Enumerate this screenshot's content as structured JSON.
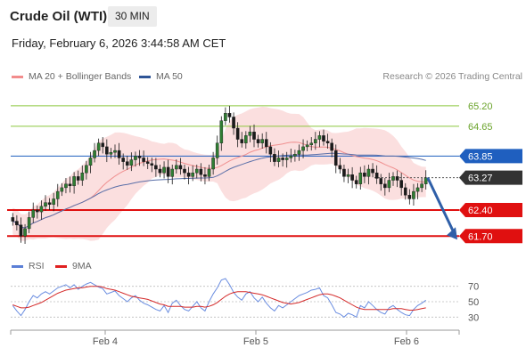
{
  "header": {
    "title": "Crude Oil (WTI)",
    "timeframe": "30 MIN",
    "datetime": "Friday, February 6, 2026 3:44:58 AM CET"
  },
  "legend": {
    "main": [
      {
        "label": "MA 20 + Bollinger Bands",
        "color": "#f28c8c"
      },
      {
        "label": "MA 50",
        "color": "#2f5597"
      }
    ],
    "indicator": [
      {
        "label": "RSI",
        "color": "#5b7fd6"
      },
      {
        "label": "9MA",
        "color": "#e02020"
      }
    ]
  },
  "credit": "Research © 2026 Trading Central",
  "colors": {
    "resistance": "#8cc63f",
    "pivot": "#1f5fbf",
    "support": "#e01010",
    "current": "#333333",
    "arrow": "#2f5fa8",
    "candle": "#2e7d32",
    "band": "#fad4d4",
    "ma20": "#f09090",
    "ma50": "#5a6fa8"
  },
  "chart_data": [
    {
      "type": "candlestick",
      "title": "Crude Oil (WTI)",
      "timeframe": "30 MIN",
      "x_ticks": [
        "Feb 4",
        "Feb 5",
        "Feb 6"
      ],
      "ylim": [
        61.3,
        65.7
      ],
      "levels": [
        {
          "value": 65.2,
          "label": "65.20",
          "kind": "resistance"
        },
        {
          "value": 64.65,
          "label": "64.65",
          "kind": "resistance"
        },
        {
          "value": 63.85,
          "label": "63.85",
          "kind": "pivot"
        },
        {
          "value": 63.27,
          "label": "63.27",
          "kind": "current"
        },
        {
          "value": 62.4,
          "label": "62.40",
          "kind": "support"
        },
        {
          "value": 61.7,
          "label": "61.70",
          "kind": "support"
        }
      ],
      "close": [
        62.1,
        62.0,
        61.7,
        61.9,
        62.2,
        62.4,
        62.35,
        62.5,
        62.6,
        62.55,
        62.7,
        62.9,
        63.0,
        63.1,
        63.05,
        63.3,
        63.2,
        63.4,
        63.6,
        63.8,
        64.0,
        64.2,
        64.1,
        63.9,
        63.95,
        64.0,
        63.8,
        63.7,
        63.6,
        63.75,
        63.85,
        63.8,
        63.7,
        63.65,
        63.6,
        63.5,
        63.4,
        63.55,
        63.3,
        63.5,
        63.6,
        63.5,
        63.4,
        63.3,
        63.4,
        63.5,
        63.35,
        63.3,
        63.5,
        63.8,
        64.2,
        64.8,
        65.0,
        64.9,
        64.6,
        64.3,
        64.2,
        64.4,
        64.5,
        64.3,
        64.2,
        64.3,
        64.1,
        63.9,
        63.7,
        63.8,
        63.75,
        63.8,
        63.85,
        63.9,
        64.0,
        64.1,
        64.15,
        64.2,
        64.3,
        64.4,
        64.25,
        64.2,
        64.0,
        63.6,
        63.5,
        63.3,
        63.35,
        63.2,
        63.1,
        63.4,
        63.3,
        63.5,
        63.4,
        63.25,
        63.1,
        63.0,
        63.2,
        63.3,
        63.2,
        63.0,
        62.8,
        62.7,
        62.9,
        63.0,
        63.1,
        63.27
      ],
      "ma20_label": "MA 20 + Bollinger Bands",
      "ma50_label": "MA 50"
    },
    {
      "type": "line",
      "title": "RSI",
      "ylim": [
        20,
        80
      ],
      "y_ticks": [
        70,
        50,
        30
      ],
      "series": [
        {
          "name": "RSI",
          "values": [
            45,
            38,
            32,
            40,
            50,
            58,
            55,
            60,
            63,
            60,
            64,
            68,
            70,
            72,
            68,
            72,
            66,
            70,
            73,
            75,
            72,
            69,
            67,
            60,
            62,
            64,
            58,
            54,
            50,
            55,
            58,
            52,
            48,
            46,
            43,
            40,
            38,
            45,
            36,
            48,
            52,
            45,
            40,
            38,
            44,
            50,
            42,
            38,
            50,
            60,
            68,
            78,
            80,
            72,
            62,
            56,
            52,
            60,
            63,
            55,
            50,
            56,
            48,
            42,
            38,
            45,
            42,
            46,
            50,
            54,
            58,
            60,
            62,
            65,
            66,
            68,
            58,
            55,
            46,
            36,
            34,
            30,
            35,
            33,
            30,
            45,
            42,
            50,
            45,
            40,
            36,
            34,
            42,
            45,
            40,
            36,
            33,
            32,
            40,
            45,
            48,
            52
          ]
        },
        {
          "name": "9MA",
          "values": [
            46,
            44,
            42,
            42,
            43,
            45,
            47,
            49,
            52,
            55,
            58,
            61,
            63,
            65,
            66,
            67,
            68,
            68,
            69,
            70,
            70,
            70,
            69,
            67,
            66,
            65,
            63,
            61,
            59,
            57,
            56,
            55,
            54,
            53,
            51,
            49,
            47,
            46,
            44,
            44,
            44,
            44,
            43,
            43,
            43,
            44,
            44,
            43,
            44,
            46,
            49,
            53,
            57,
            60,
            62,
            63,
            63,
            63,
            62,
            61,
            60,
            59,
            57,
            55,
            53,
            51,
            49,
            48,
            47,
            48,
            49,
            51,
            53,
            55,
            57,
            59,
            60,
            60,
            59,
            57,
            55,
            52,
            49,
            46,
            43,
            41,
            40,
            40,
            40,
            40,
            40,
            40,
            40,
            41,
            41,
            41,
            40,
            39,
            39,
            40,
            41,
            42
          ]
        }
      ]
    }
  ]
}
